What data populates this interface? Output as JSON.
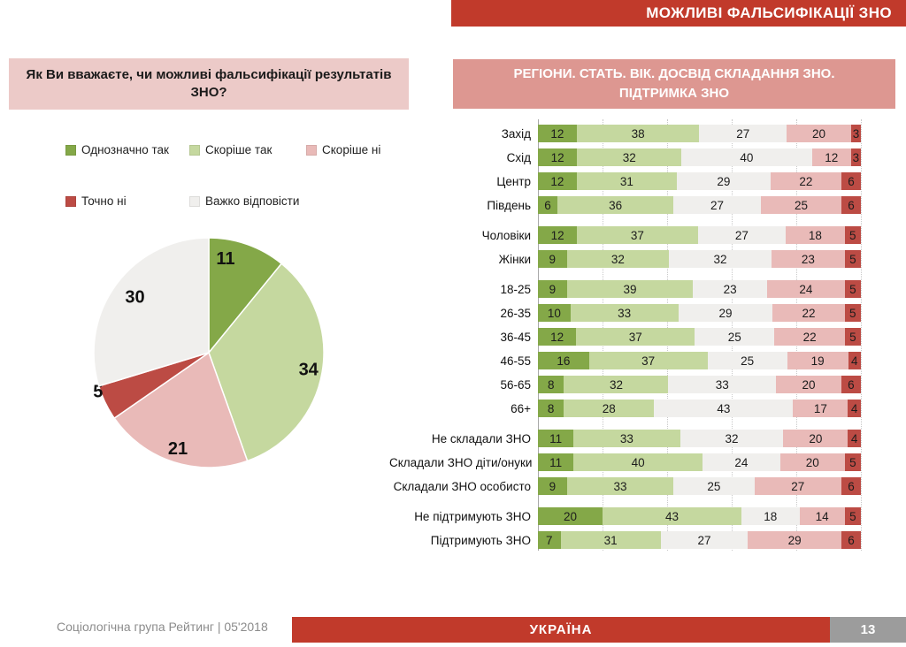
{
  "title_bar": {
    "text": "МОЖЛИВІ ФАЛЬСИФІКАЦІЇ ЗНО"
  },
  "question_box": {
    "text": "Як Ви вважаєте, чи можливі фальсифікації результатів ЗНО?"
  },
  "colors": {
    "definitely_yes": "#84a848",
    "rather_yes": "#c5d89f",
    "rather_no": "#e9bab8",
    "definitely_no": "#bc4b44",
    "hard_to_say": "#f0efed",
    "accent_red": "#c13a2b",
    "header_pink": "#dd9791",
    "question_pink": "#eccac8",
    "page_gray": "#9c9c9c"
  },
  "legend": {
    "items": [
      {
        "label": "Однозначно так",
        "key": "definitely_yes"
      },
      {
        "label": "Скоріше  так",
        "key": "rather_yes"
      },
      {
        "label": "Скоріше  ні",
        "key": "rather_no"
      },
      {
        "label": "Точно ні",
        "key": "definitely_no"
      },
      {
        "label": "Важко відповісти",
        "key": "hard_to_say"
      }
    ]
  },
  "chart_data": [
    {
      "type": "pie",
      "title": "Як Ви вважаєте, чи можливі фальсифікації результатів ЗНО?",
      "labels": [
        "Однозначно так",
        "Скоріше так",
        "Скоріше ні",
        "Точно ні",
        "Важко відповісти"
      ],
      "values": [
        11,
        34,
        21,
        5,
        30
      ],
      "color_keys": [
        "definitely_yes",
        "rather_yes",
        "rather_no",
        "definitely_no",
        "hard_to_say"
      ],
      "start_angle_deg": 0,
      "direction": "clockwise",
      "data_labels": "values-inside"
    },
    {
      "type": "bar",
      "variant": "stacked-horizontal",
      "title": "РЕГІОНИ. СТАТЬ. ВІК. ДОСВІД  СКЛАДАННЯ ЗНО. ПІДТРИМКА ЗНО",
      "title_lines": [
        "РЕГІОНИ. СТАТЬ. ВІК. ДОСВІД  СКЛАДАННЯ ЗНО.",
        "ПІДТРИМКА ЗНО"
      ],
      "series": [
        "Однозначно так",
        "Скоріше так",
        "Важко відповісти",
        "Скоріше ні",
        "Точно ні"
      ],
      "series_color_keys": [
        "definitely_yes",
        "rather_yes",
        "hard_to_say",
        "rather_no",
        "definitely_no"
      ],
      "xlim": [
        0,
        100
      ],
      "grid": "vertical-dotted-every-20",
      "groups": [
        {
          "name": "regions",
          "rows": [
            {
              "label": "Захід",
              "values": [
                12,
                38,
                27,
                20,
                3
              ]
            },
            {
              "label": "Схід",
              "values": [
                12,
                32,
                40,
                12,
                3
              ]
            },
            {
              "label": "Центр",
              "values": [
                12,
                31,
                29,
                22,
                6
              ]
            },
            {
              "label": "Південь",
              "values": [
                6,
                36,
                27,
                25,
                6
              ]
            }
          ]
        },
        {
          "name": "gender",
          "rows": [
            {
              "label": "Чоловіки",
              "values": [
                12,
                37,
                27,
                18,
                5
              ]
            },
            {
              "label": "Жінки",
              "values": [
                9,
                32,
                32,
                23,
                5
              ]
            }
          ]
        },
        {
          "name": "age",
          "rows": [
            {
              "label": "18-25",
              "values": [
                9,
                39,
                23,
                24,
                5
              ]
            },
            {
              "label": "26-35",
              "values": [
                10,
                33,
                29,
                22,
                5
              ]
            },
            {
              "label": "36-45",
              "values": [
                12,
                37,
                25,
                22,
                5
              ]
            },
            {
              "label": "46-55",
              "values": [
                16,
                37,
                25,
                19,
                4
              ]
            },
            {
              "label": "56-65",
              "values": [
                8,
                32,
                33,
                20,
                6
              ]
            },
            {
              "label": "66+",
              "values": [
                8,
                28,
                43,
                17,
                4
              ]
            }
          ]
        },
        {
          "name": "zno-experience",
          "rows": [
            {
              "label": "Не складали ЗНО",
              "values": [
                11,
                33,
                32,
                20,
                4
              ]
            },
            {
              "label": "Складали ЗНО діти/онуки",
              "values": [
                11,
                40,
                24,
                20,
                5
              ]
            },
            {
              "label": "Складали ЗНО особисто",
              "values": [
                9,
                33,
                25,
                27,
                6
              ]
            }
          ]
        },
        {
          "name": "zno-support",
          "rows": [
            {
              "label": "Не підтримують ЗНО",
              "values": [
                20,
                43,
                18,
                14,
                5
              ]
            },
            {
              "label": "Підтримують ЗНО",
              "values": [
                7,
                31,
                27,
                29,
                6
              ]
            }
          ]
        }
      ]
    }
  ],
  "footer": {
    "source": "Соціологічна група Рейтинг  |  05'2018",
    "country_label": "УКРАЇНА",
    "page_number": "13"
  }
}
